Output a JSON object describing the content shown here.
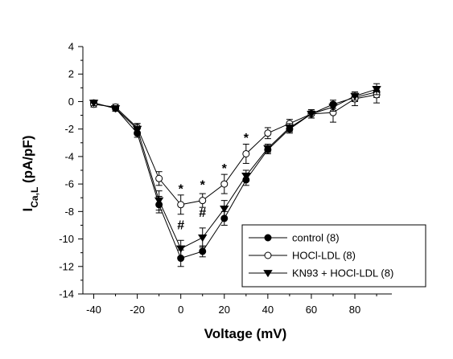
{
  "chart_data": {
    "type": "line",
    "xlabel": "Voltage (mV)",
    "ylabel": {
      "main": "I",
      "sub": "Ca,L",
      "suffix": " (pA/pF)"
    },
    "xlim": [
      -45,
      97
    ],
    "ylim": [
      -14,
      4
    ],
    "xticks": [
      -40,
      -20,
      0,
      20,
      40,
      60,
      80
    ],
    "yticks": [
      4,
      2,
      0,
      -2,
      -4,
      -6,
      -8,
      -10,
      -12,
      -14
    ],
    "x": [
      -40,
      -30,
      -20,
      -10,
      0,
      10,
      20,
      30,
      40,
      50,
      60,
      70,
      80,
      90
    ],
    "series": [
      {
        "name": "control (8)",
        "marker": "filled-circle",
        "values": [
          -0.1,
          -0.5,
          -2.3,
          -7.5,
          -11.4,
          -10.9,
          -8.5,
          -5.7,
          -3.5,
          -2.0,
          -0.9,
          -0.2,
          0.3,
          0.7
        ],
        "errors": [
          0.2,
          0.2,
          0.3,
          0.6,
          0.6,
          0.4,
          0.5,
          0.4,
          0.3,
          0.3,
          0.3,
          0.3,
          0.3,
          0.4
        ]
      },
      {
        "name": "HOCl-LDL (8)",
        "marker": "open-circle",
        "values": [
          -0.2,
          -0.4,
          -1.9,
          -5.6,
          -7.5,
          -7.2,
          -6.0,
          -3.8,
          -2.3,
          -1.6,
          -0.9,
          -0.8,
          0.2,
          0.5
        ],
        "errors": [
          0.2,
          0.2,
          0.3,
          0.5,
          0.7,
          0.5,
          0.7,
          0.7,
          0.4,
          0.3,
          0.3,
          0.7,
          0.5,
          0.6
        ]
      },
      {
        "name": "KN93 + HOCl-LDL (8)",
        "marker": "filled-triangle-down",
        "values": [
          -0.1,
          -0.5,
          -2.0,
          -7.2,
          -10.7,
          -9.9,
          -7.8,
          -5.4,
          -3.4,
          -1.9,
          -0.9,
          -0.4,
          0.4,
          0.9
        ],
        "errors": [
          0.2,
          0.2,
          0.4,
          0.7,
          0.6,
          0.7,
          0.6,
          0.4,
          0.3,
          0.3,
          0.3,
          0.3,
          0.3,
          0.4
        ]
      }
    ],
    "annotations": [
      {
        "text": "*",
        "x": 0,
        "y": -6.2
      },
      {
        "text": "*",
        "x": 10,
        "y": -5.9
      },
      {
        "text": "*",
        "x": 20,
        "y": -4.7
      },
      {
        "text": "*",
        "x": 30,
        "y": -2.5
      },
      {
        "text": "#",
        "x": 0,
        "y": -9.3
      },
      {
        "text": "#",
        "x": 10,
        "y": -8.4
      }
    ],
    "legend_position": "bottom-right",
    "grid": false
  }
}
